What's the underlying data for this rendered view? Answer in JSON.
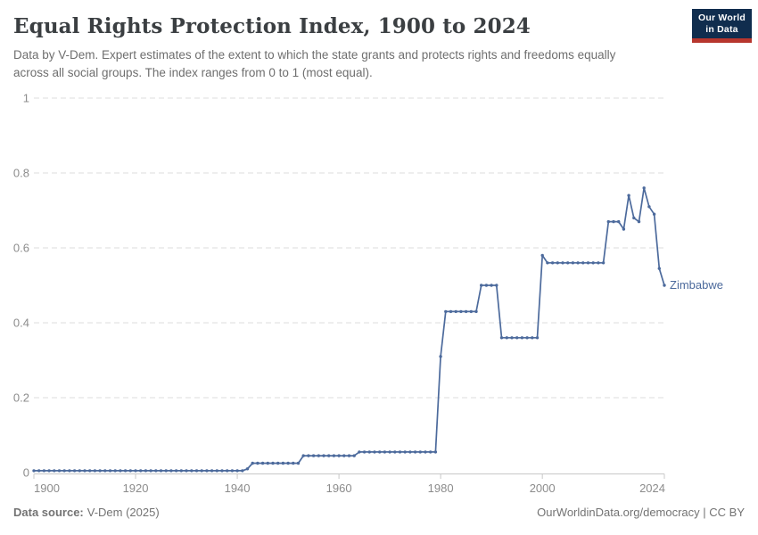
{
  "header": {
    "title": "Equal Rights Protection Index, 1900 to 2024",
    "subtitle": "Data by V-Dem. Expert estimates of the extent to which the state grants and protects rights and freedoms equally across all social groups. The index ranges from 0 to 1 (most equal).",
    "logo": {
      "line1": "Our World",
      "line2": "in Data",
      "bg_color": "#102d4e",
      "bar_color": "#b7362e"
    }
  },
  "footer": {
    "source_label": "Data source:",
    "source_value": "V-Dem (2025)",
    "right_text": "OurWorldinData.org/democracy | CC BY"
  },
  "colors": {
    "series_blue": "#4c6a9c",
    "gridline": "#dddddd",
    "axis": "#c8c8c8",
    "tick_label": "#8c8c8c"
  },
  "chart_data": {
    "type": "line",
    "title": "Equal Rights Protection Index, 1900 to 2024",
    "xlabel": "",
    "ylabel": "",
    "xlim": [
      1900,
      2024
    ],
    "ylim": [
      0,
      1
    ],
    "x_ticks": [
      1900,
      1920,
      1940,
      1960,
      1980,
      2000,
      2024
    ],
    "y_ticks": [
      0,
      0.2,
      0.4,
      0.6,
      0.8,
      1
    ],
    "grid": "horizontal-dashed",
    "legend_position": "line-end-label",
    "series": [
      {
        "name": "Zimbabwe",
        "color": "#4c6a9c",
        "x_start": 1900,
        "x_step": 1,
        "values": [
          0.005,
          0.005,
          0.005,
          0.005,
          0.005,
          0.005,
          0.005,
          0.005,
          0.005,
          0.005,
          0.005,
          0.005,
          0.005,
          0.005,
          0.005,
          0.005,
          0.005,
          0.005,
          0.005,
          0.005,
          0.005,
          0.005,
          0.005,
          0.005,
          0.005,
          0.005,
          0.005,
          0.005,
          0.005,
          0.005,
          0.005,
          0.005,
          0.005,
          0.005,
          0.005,
          0.005,
          0.005,
          0.005,
          0.005,
          0.005,
          0.005,
          0.005,
          0.01,
          0.025,
          0.025,
          0.025,
          0.025,
          0.025,
          0.025,
          0.025,
          0.025,
          0.025,
          0.025,
          0.045,
          0.045,
          0.045,
          0.045,
          0.045,
          0.045,
          0.045,
          0.045,
          0.045,
          0.045,
          0.045,
          0.055,
          0.055,
          0.055,
          0.055,
          0.055,
          0.055,
          0.055,
          0.055,
          0.055,
          0.055,
          0.055,
          0.055,
          0.055,
          0.055,
          0.055,
          0.055,
          0.31,
          0.43,
          0.43,
          0.43,
          0.43,
          0.43,
          0.43,
          0.43,
          0.5,
          0.5,
          0.5,
          0.5,
          0.36,
          0.36,
          0.36,
          0.36,
          0.36,
          0.36,
          0.36,
          0.36,
          0.58,
          0.56,
          0.56,
          0.56,
          0.56,
          0.56,
          0.56,
          0.56,
          0.56,
          0.56,
          0.56,
          0.56,
          0.56,
          0.67,
          0.67,
          0.67,
          0.65,
          0.74,
          0.68,
          0.67,
          0.76,
          0.71,
          0.69,
          0.545,
          0.5
        ]
      }
    ]
  }
}
